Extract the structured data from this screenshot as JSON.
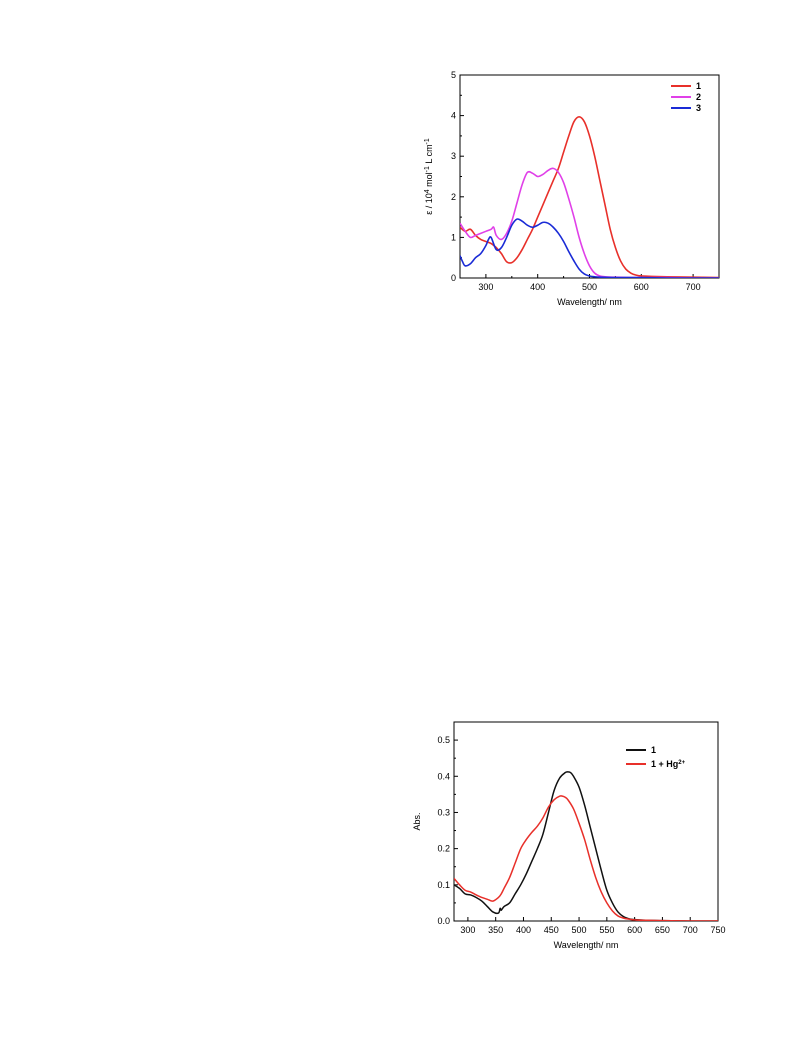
{
  "chart_data": [
    {
      "type": "line",
      "title": "",
      "xlabel": "Wavelength/ nm",
      "ylabel": {
        "prefix": "ε / 10",
        "exp1": "4",
        "mid": " mol",
        "exp2": "-1",
        "mid2": " L cm",
        "exp3": "-1"
      },
      "xlim": [
        250,
        750
      ],
      "ylim": [
        0,
        5
      ],
      "xticks": [
        300,
        400,
        500,
        600,
        700
      ],
      "yticks": [
        0,
        1,
        2,
        3,
        4,
        5
      ],
      "legend_position": "top-right",
      "series": [
        {
          "name": "1",
          "color": "#e8302a",
          "x": [
            250,
            260,
            270,
            280,
            290,
            300,
            310,
            315,
            320,
            330,
            340,
            350,
            360,
            370,
            380,
            390,
            400,
            410,
            420,
            430,
            440,
            450,
            460,
            470,
            480,
            490,
            500,
            510,
            520,
            530,
            540,
            550,
            560,
            570,
            580,
            590,
            600,
            620,
            650,
            700,
            750
          ],
          "y": [
            1.25,
            1.15,
            1.2,
            1.05,
            0.95,
            0.9,
            0.85,
            0.8,
            0.75,
            0.6,
            0.4,
            0.38,
            0.5,
            0.7,
            0.95,
            1.2,
            1.5,
            1.8,
            2.1,
            2.4,
            2.7,
            3.1,
            3.5,
            3.85,
            3.97,
            3.85,
            3.5,
            3.0,
            2.4,
            1.8,
            1.2,
            0.75,
            0.42,
            0.22,
            0.12,
            0.07,
            0.05,
            0.04,
            0.03,
            0.02,
            0.01
          ]
        },
        {
          "name": "2",
          "color": "#e040e8",
          "x": [
            250,
            260,
            270,
            280,
            290,
            300,
            310,
            315,
            320,
            330,
            340,
            350,
            360,
            370,
            380,
            390,
            400,
            410,
            420,
            430,
            440,
            450,
            460,
            470,
            480,
            490,
            500,
            510,
            520,
            530,
            550,
            600,
            650,
            700,
            750
          ],
          "y": [
            1.35,
            1.15,
            1.0,
            1.05,
            1.1,
            1.15,
            1.2,
            1.25,
            1.05,
            0.95,
            1.1,
            1.4,
            1.85,
            2.3,
            2.6,
            2.58,
            2.5,
            2.55,
            2.65,
            2.7,
            2.6,
            2.35,
            1.95,
            1.5,
            1.0,
            0.6,
            0.3,
            0.12,
            0.05,
            0.03,
            0.02,
            0.01,
            0.01,
            0.0,
            0.0
          ]
        },
        {
          "name": "3",
          "color": "#1a2bd6",
          "x": [
            250,
            255,
            260,
            270,
            280,
            290,
            300,
            305,
            310,
            320,
            330,
            340,
            350,
            360,
            370,
            380,
            390,
            400,
            410,
            420,
            430,
            440,
            450,
            460,
            470,
            480,
            490,
            500,
            510,
            520,
            550,
            600,
            650,
            700,
            750
          ],
          "y": [
            0.55,
            0.4,
            0.3,
            0.35,
            0.5,
            0.6,
            0.8,
            0.95,
            1.0,
            0.7,
            0.75,
            1.0,
            1.3,
            1.45,
            1.4,
            1.3,
            1.25,
            1.3,
            1.37,
            1.35,
            1.25,
            1.1,
            0.9,
            0.65,
            0.42,
            0.22,
            0.1,
            0.05,
            0.03,
            0.02,
            0.01,
            0.01,
            0.0,
            0.0,
            0.0
          ]
        }
      ]
    },
    {
      "type": "line",
      "title": "",
      "xlabel": "Wavelength/ nm",
      "ylabel": "Abs.",
      "xlim": [
        275,
        750
      ],
      "ylim": [
        0,
        0.55
      ],
      "xticks": [
        300,
        350,
        400,
        450,
        500,
        550,
        600,
        650,
        700,
        750
      ],
      "yticks": [
        "0.0",
        "0.1",
        "0.2",
        "0.3",
        "0.4",
        "0.5"
      ],
      "legend_position": "top-right",
      "series": [
        {
          "name": "1",
          "color": "#111111",
          "x": [
            275,
            285,
            295,
            305,
            315,
            325,
            335,
            345,
            355,
            358,
            360,
            365,
            375,
            385,
            395,
            405,
            415,
            425,
            435,
            445,
            455,
            465,
            475,
            480,
            485,
            490,
            500,
            510,
            520,
            530,
            540,
            550,
            560,
            570,
            580,
            590,
            600,
            620,
            650,
            700,
            750
          ],
          "y": [
            0.1,
            0.09,
            0.075,
            0.072,
            0.065,
            0.055,
            0.04,
            0.025,
            0.022,
            0.035,
            0.03,
            0.04,
            0.05,
            0.075,
            0.1,
            0.13,
            0.165,
            0.2,
            0.24,
            0.3,
            0.36,
            0.395,
            0.41,
            0.412,
            0.41,
            0.4,
            0.37,
            0.32,
            0.26,
            0.2,
            0.14,
            0.085,
            0.05,
            0.025,
            0.012,
            0.006,
            0.004,
            0.002,
            0.001,
            0.0,
            0.0
          ]
        },
        {
          "name": "1 + Hg",
          "superscript": "2+",
          "color": "#e8302a",
          "x": [
            275,
            285,
            295,
            305,
            315,
            325,
            335,
            345,
            355,
            360,
            365,
            375,
            385,
            395,
            405,
            415,
            425,
            435,
            445,
            455,
            465,
            470,
            475,
            480,
            490,
            500,
            510,
            520,
            530,
            540,
            550,
            560,
            570,
            580,
            590,
            600,
            620,
            650,
            700,
            750
          ],
          "y": [
            0.118,
            0.1,
            0.085,
            0.08,
            0.072,
            0.065,
            0.06,
            0.055,
            0.065,
            0.075,
            0.09,
            0.12,
            0.16,
            0.2,
            0.225,
            0.245,
            0.262,
            0.285,
            0.315,
            0.335,
            0.345,
            0.345,
            0.342,
            0.335,
            0.31,
            0.27,
            0.225,
            0.17,
            0.12,
            0.08,
            0.05,
            0.028,
            0.014,
            0.008,
            0.005,
            0.003,
            0.002,
            0.001,
            0.0,
            0.0
          ]
        }
      ]
    }
  ]
}
